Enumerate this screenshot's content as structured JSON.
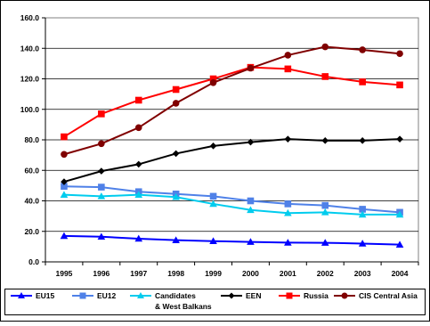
{
  "chart_data": {
    "type": "line",
    "title": "",
    "xlabel": "",
    "ylabel": "",
    "ylim": [
      0,
      160
    ],
    "yticks": [
      "0.0",
      "20.0",
      "40.0",
      "60.0",
      "80.0",
      "100.0",
      "120.0",
      "140.0",
      "160.0"
    ],
    "x": [
      "1995",
      "1996",
      "1997",
      "1998",
      "1999",
      "2000",
      "2001",
      "2002",
      "2003",
      "2004"
    ],
    "grid": "horizontal",
    "legend_position": "bottom",
    "series": [
      {
        "name": "EU15",
        "color": "#0000ff",
        "marker": "triangle",
        "values": [
          17.0,
          16.5,
          15.2,
          14.2,
          13.6,
          13.1,
          12.6,
          12.5,
          12.0,
          11.3
        ]
      },
      {
        "name": "EU12",
        "color": "#4f81e8",
        "marker": "square",
        "values": [
          49.5,
          49.0,
          46.0,
          44.5,
          43.0,
          40.0,
          38.0,
          37.0,
          34.5,
          32.5
        ]
      },
      {
        "name": "Candidates & West Balkans",
        "color": "#00ccee",
        "marker": "triangle",
        "values": [
          44.0,
          43.0,
          44.0,
          42.5,
          38.0,
          34.0,
          32.0,
          32.5,
          31.0,
          31.0
        ]
      },
      {
        "name": "EEN",
        "color": "#000000",
        "marker": "diamond",
        "values": [
          52.5,
          59.5,
          64.0,
          71.0,
          76.0,
          78.5,
          80.5,
          79.5,
          79.5,
          80.5
        ]
      },
      {
        "name": "Russia",
        "color": "#ff0000",
        "marker": "square",
        "values": [
          82.0,
          97.0,
          106.0,
          113.0,
          120.0,
          127.5,
          126.5,
          121.5,
          118.0,
          116.0
        ]
      },
      {
        "name": "CIS Central Asia",
        "color": "#800000",
        "marker": "circle",
        "values": [
          70.5,
          77.5,
          88.0,
          104.0,
          117.5,
          127.0,
          135.5,
          141.0,
          139.0,
          136.5
        ]
      }
    ],
    "legend_labels": [
      {
        "line1": "EU15",
        "line2": ""
      },
      {
        "line1": "EU12",
        "line2": ""
      },
      {
        "line1": "Candidates",
        "line2": "& West Balkans"
      },
      {
        "line1": "EEN",
        "line2": ""
      },
      {
        "line1": "Russia",
        "line2": ""
      },
      {
        "line1": "CIS Central Asia",
        "line2": ""
      }
    ]
  }
}
